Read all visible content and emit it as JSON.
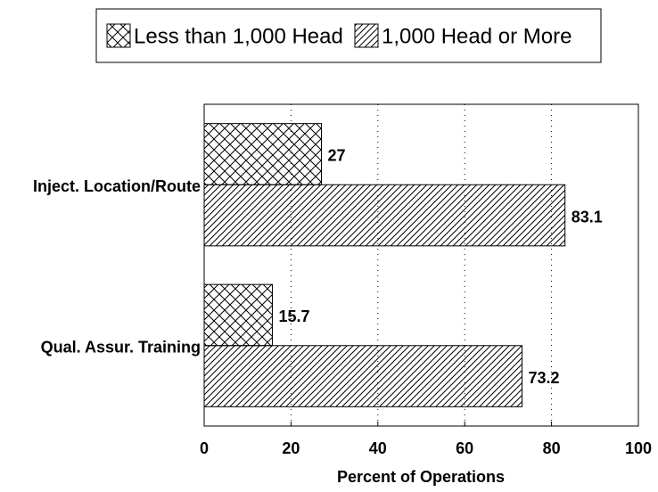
{
  "chart_data": {
    "type": "barh",
    "xlabel": "Percent of Operations",
    "categories": [
      "Inject. Location/Route",
      "Qual. Assur. Training"
    ],
    "series": [
      {
        "name": "Less than 1,000 Head",
        "color": "#000000",
        "hatch": "crosshatch",
        "values": [
          27,
          15.7
        ]
      },
      {
        "name": "1,000 Head or More",
        "color": "#000000",
        "hatch": "diagonal",
        "values": [
          83.1,
          73.2
        ]
      }
    ],
    "xlim": [
      0,
      100
    ],
    "xticks": [
      0,
      20,
      40,
      60,
      80,
      100
    ],
    "grid": true,
    "legend": "top"
  }
}
